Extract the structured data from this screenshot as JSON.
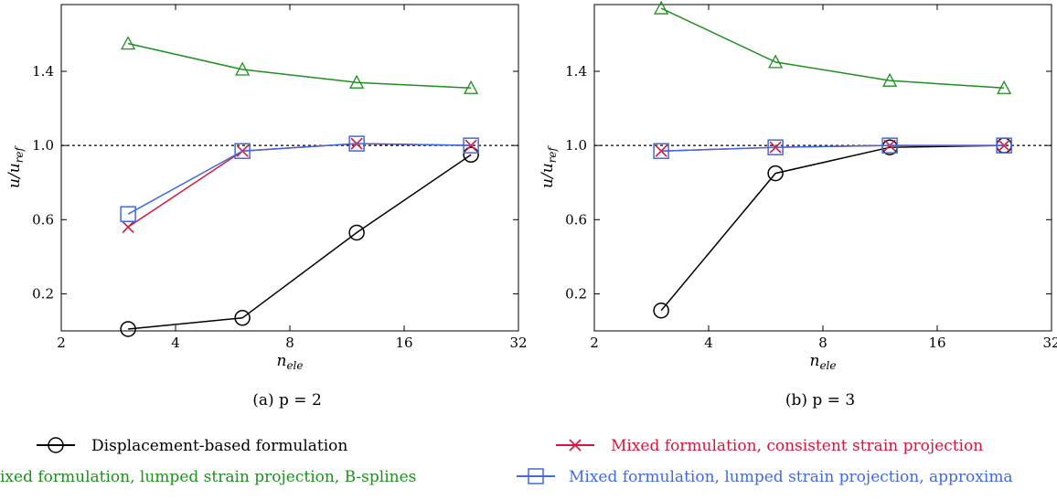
{
  "chart_data": [
    {
      "type": "line",
      "caption": "(a) p = 2",
      "xlabel": "n_ele",
      "ylabel": "u/u_ref",
      "xscale": "log2",
      "xlim": [
        2,
        32
      ],
      "ylim": [
        0,
        1.76
      ],
      "xticks": [
        2,
        4,
        8,
        16,
        32
      ],
      "yticks": [
        0.2,
        0.6,
        1.0,
        1.4
      ],
      "reference_line": 1.0,
      "grid": false,
      "x": [
        3,
        6,
        12,
        24
      ],
      "series": [
        {
          "name": "Displacement-based formulation",
          "values": [
            0.01,
            0.07,
            0.53,
            0.95
          ]
        },
        {
          "name": "Mixed formulation, consistent strain projection",
          "values": [
            0.56,
            0.97,
            1.01,
            1.0
          ]
        },
        {
          "name": "Mixed formulation, lumped strain projection, B-splines",
          "values": [
            1.55,
            1.41,
            1.34,
            1.31
          ]
        },
        {
          "name": "Mixed formulation, lumped strain projection, approxima",
          "values": [
            0.63,
            0.97,
            1.01,
            1.0
          ]
        }
      ]
    },
    {
      "type": "line",
      "caption": "(b) p = 3",
      "xlabel": "n_ele",
      "ylabel": "u/u_ref",
      "xscale": "log2",
      "xlim": [
        2,
        32
      ],
      "ylim": [
        0,
        1.76
      ],
      "xticks": [
        2,
        4,
        8,
        16,
        32
      ],
      "yticks": [
        0.2,
        0.6,
        1.0,
        1.4
      ],
      "reference_line": 1.0,
      "grid": false,
      "x": [
        3,
        6,
        12,
        24
      ],
      "series": [
        {
          "name": "Displacement-based formulation",
          "values": [
            0.11,
            0.85,
            0.99,
            1.0
          ]
        },
        {
          "name": "Mixed formulation, consistent strain projection",
          "values": [
            0.97,
            0.99,
            1.0,
            1.0
          ]
        },
        {
          "name": "Mixed formulation, lumped strain projection, B-splines",
          "values": [
            1.74,
            1.45,
            1.35,
            1.31
          ]
        },
        {
          "name": "Mixed formulation, lumped strain projection, approxima",
          "values": [
            0.97,
            0.99,
            1.0,
            1.0
          ]
        }
      ]
    }
  ],
  "legend": [
    {
      "label": "Displacement-based formulation",
      "color": "#000000",
      "marker": "circle"
    },
    {
      "label": "Mixed formulation, consistent strain projection",
      "color": "#d6163c",
      "marker": "x"
    },
    {
      "label": "ixed formulation, lumped strain projection, B-splines",
      "color": "#1f8f1f",
      "marker": "triangle"
    },
    {
      "label": "Mixed formulation, lumped strain projection, approxima",
      "color": "#4169e1",
      "marker": "square"
    }
  ],
  "legend_placement": "bottom",
  "colors": {
    "displacement": "#000000",
    "consistent": "#d6163c",
    "bsplines": "#1f8f1f",
    "approx": "#4169e1"
  }
}
